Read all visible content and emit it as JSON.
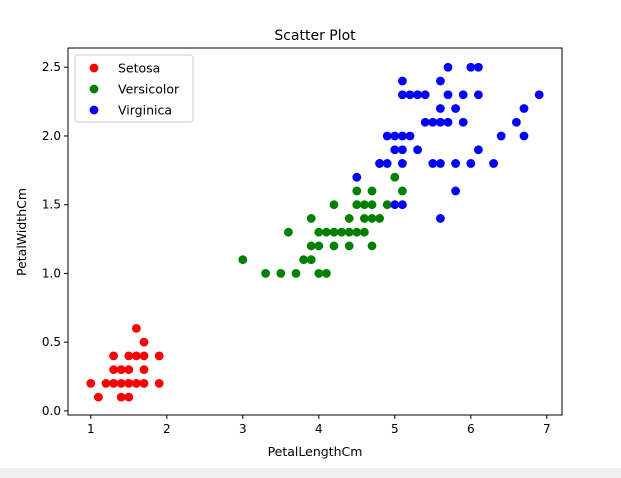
{
  "chart_data": {
    "type": "scatter",
    "title": "Scatter Plot",
    "xlabel": "PetalLengthCm",
    "ylabel": "PetalWidthCm",
    "xlim": [
      0.7,
      7.2
    ],
    "ylim": [
      -0.03,
      2.64
    ],
    "xticks": [
      1,
      2,
      3,
      4,
      5,
      6,
      7
    ],
    "xtick_labels": [
      "1",
      "2",
      "3",
      "4",
      "5",
      "6",
      "7"
    ],
    "yticks": [
      0.0,
      0.5,
      1.0,
      1.5,
      2.0,
      2.5
    ],
    "ytick_labels": [
      "0.0",
      "0.5",
      "1.0",
      "1.5",
      "2.0",
      "2.5"
    ],
    "grid": false,
    "legend_position": "top-left",
    "series": [
      {
        "name": "Setosa",
        "color": "#ff0000",
        "points": [
          [
            1.0,
            0.2
          ],
          [
            1.1,
            0.1
          ],
          [
            1.2,
            0.2
          ],
          [
            1.3,
            0.2
          ],
          [
            1.3,
            0.3
          ],
          [
            1.3,
            0.4
          ],
          [
            1.4,
            0.1
          ],
          [
            1.4,
            0.2
          ],
          [
            1.4,
            0.3
          ],
          [
            1.5,
            0.1
          ],
          [
            1.5,
            0.2
          ],
          [
            1.5,
            0.3
          ],
          [
            1.5,
            0.4
          ],
          [
            1.6,
            0.2
          ],
          [
            1.6,
            0.4
          ],
          [
            1.6,
            0.6
          ],
          [
            1.7,
            0.2
          ],
          [
            1.7,
            0.3
          ],
          [
            1.7,
            0.4
          ],
          [
            1.7,
            0.5
          ],
          [
            1.9,
            0.2
          ],
          [
            1.9,
            0.4
          ]
        ]
      },
      {
        "name": "Versicolor",
        "color": "#008000",
        "points": [
          [
            3.0,
            1.1
          ],
          [
            3.3,
            1.0
          ],
          [
            3.5,
            1.0
          ],
          [
            3.6,
            1.3
          ],
          [
            3.7,
            1.0
          ],
          [
            3.8,
            1.1
          ],
          [
            3.9,
            1.1
          ],
          [
            3.9,
            1.2
          ],
          [
            3.9,
            1.4
          ],
          [
            4.0,
            1.0
          ],
          [
            4.0,
            1.2
          ],
          [
            4.0,
            1.3
          ],
          [
            4.1,
            1.0
          ],
          [
            4.1,
            1.3
          ],
          [
            4.2,
            1.2
          ],
          [
            4.2,
            1.3
          ],
          [
            4.2,
            1.5
          ],
          [
            4.3,
            1.3
          ],
          [
            4.4,
            1.2
          ],
          [
            4.4,
            1.3
          ],
          [
            4.4,
            1.4
          ],
          [
            4.5,
            1.3
          ],
          [
            4.5,
            1.5
          ],
          [
            4.5,
            1.6
          ],
          [
            4.6,
            1.3
          ],
          [
            4.6,
            1.4
          ],
          [
            4.6,
            1.5
          ],
          [
            4.7,
            1.2
          ],
          [
            4.7,
            1.4
          ],
          [
            4.7,
            1.5
          ],
          [
            4.7,
            1.6
          ],
          [
            4.8,
            1.4
          ],
          [
            4.8,
            1.8
          ],
          [
            4.9,
            1.5
          ],
          [
            5.0,
            1.7
          ],
          [
            5.1,
            1.6
          ]
        ]
      },
      {
        "name": "Virginica",
        "color": "#0000ff",
        "points": [
          [
            4.5,
            1.7
          ],
          [
            4.8,
            1.8
          ],
          [
            4.9,
            1.8
          ],
          [
            4.9,
            2.0
          ],
          [
            5.0,
            1.5
          ],
          [
            5.0,
            1.9
          ],
          [
            5.0,
            2.0
          ],
          [
            5.1,
            1.5
          ],
          [
            5.1,
            1.8
          ],
          [
            5.1,
            1.9
          ],
          [
            5.1,
            2.0
          ],
          [
            5.1,
            2.3
          ],
          [
            5.1,
            2.4
          ],
          [
            5.2,
            2.0
          ],
          [
            5.2,
            2.3
          ],
          [
            5.3,
            1.9
          ],
          [
            5.3,
            2.3
          ],
          [
            5.4,
            2.1
          ],
          [
            5.4,
            2.3
          ],
          [
            5.5,
            1.8
          ],
          [
            5.5,
            2.1
          ],
          [
            5.6,
            1.4
          ],
          [
            5.6,
            1.8
          ],
          [
            5.6,
            2.1
          ],
          [
            5.6,
            2.2
          ],
          [
            5.6,
            2.4
          ],
          [
            5.7,
            2.1
          ],
          [
            5.7,
            2.3
          ],
          [
            5.7,
            2.5
          ],
          [
            5.8,
            1.6
          ],
          [
            5.8,
            1.8
          ],
          [
            5.8,
            2.2
          ],
          [
            5.9,
            2.1
          ],
          [
            5.9,
            2.3
          ],
          [
            6.0,
            1.8
          ],
          [
            6.0,
            2.5
          ],
          [
            6.1,
            1.9
          ],
          [
            6.1,
            2.3
          ],
          [
            6.1,
            2.5
          ],
          [
            6.3,
            1.8
          ],
          [
            6.4,
            2.0
          ],
          [
            6.6,
            2.1
          ],
          [
            6.7,
            2.0
          ],
          [
            6.7,
            2.2
          ],
          [
            6.9,
            2.3
          ]
        ]
      }
    ]
  }
}
